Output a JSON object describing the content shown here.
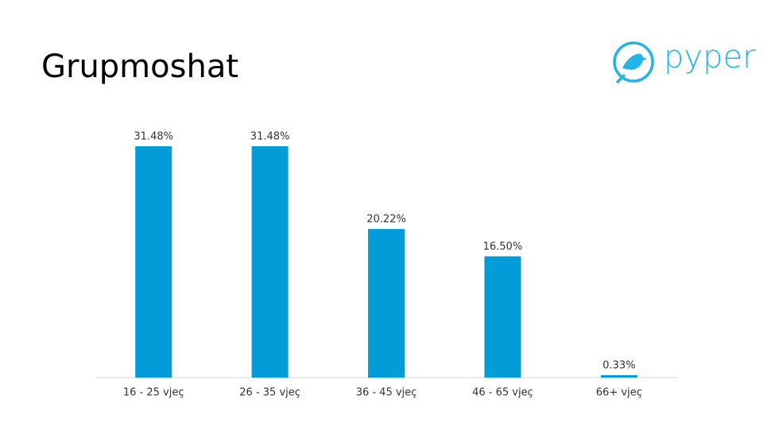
{
  "chart_data": {
    "type": "bar",
    "title": "Grupmoshat",
    "categories": [
      "16 - 25 vjeç",
      "26 - 35 vjeç",
      "36 - 45 vjeç",
      "46 - 65 vjeç",
      "66+ vjeç"
    ],
    "values": [
      31.48,
      31.48,
      20.22,
      16.5,
      0.33
    ],
    "value_labels": [
      "31.48%",
      "31.48%",
      "20.22%",
      "16.50%",
      "0.33%"
    ],
    "color": "#039bd8"
  },
  "logo": {
    "text": "pyper",
    "color": "#22b5e6"
  }
}
